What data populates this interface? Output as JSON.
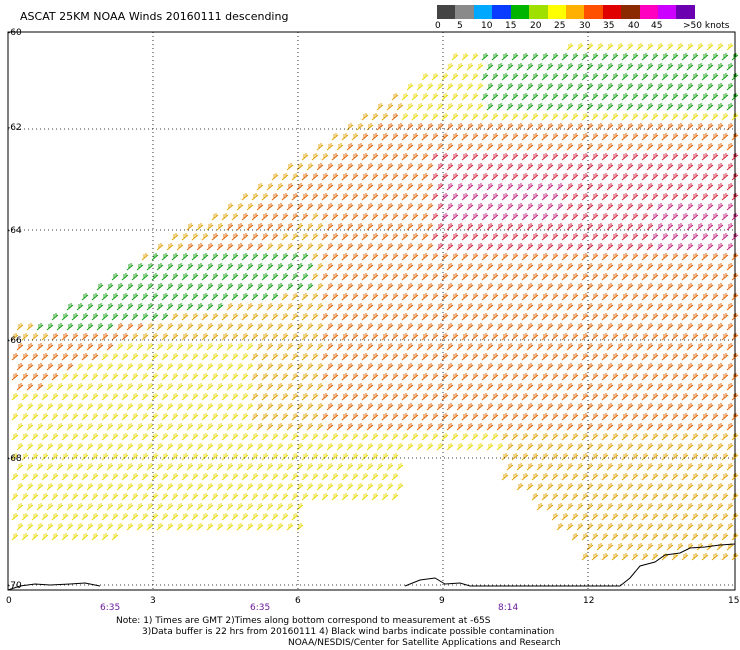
{
  "title": "ASCAT 25KM NOAA Winds 20160111 descending",
  "legend": {
    "colors": [
      "#444444",
      "#8a8a8a",
      "#00a8ff",
      "#0a3cff",
      "#00b400",
      "#9fe000",
      "#ffff00",
      "#ffb000",
      "#ff5000",
      "#e00000",
      "#8b2a00",
      "#ff00c0",
      "#cc00ff",
      "#6a00b0"
    ],
    "labels": [
      "0",
      "5",
      "10",
      "15",
      "20",
      "25",
      "30",
      "35",
      "40",
      "45",
      ">50 knots"
    ]
  },
  "axes": {
    "lat_labels": [
      "-60",
      "-62",
      "-64",
      "-66",
      "-68",
      "-70"
    ],
    "lon_labels": [
      "0",
      "3",
      "6",
      "9",
      "12",
      "15"
    ],
    "time_labels": [
      "6:35",
      "6:35",
      "8:14"
    ]
  },
  "colors": {
    "yellow": "#e8d800",
    "gold": "#e0a000",
    "orange": "#e06000",
    "red": "#d0203a",
    "magenta": "#c0207a",
    "green": "#0a9a0a",
    "lightgreen": "#6ab000",
    "coast": "#000000",
    "time": "#6a1a9a"
  },
  "note": {
    "line1": "Note: 1) Times are GMT 2)Times along bottom correspond to measurement at -65S",
    "line2": "3)Data buffer is 22 hrs from 20160111 4) Black wind barbs indicate possible contamination",
    "line3": "NOAA/NESDIS/Center for Satellite Applications and Research"
  }
}
